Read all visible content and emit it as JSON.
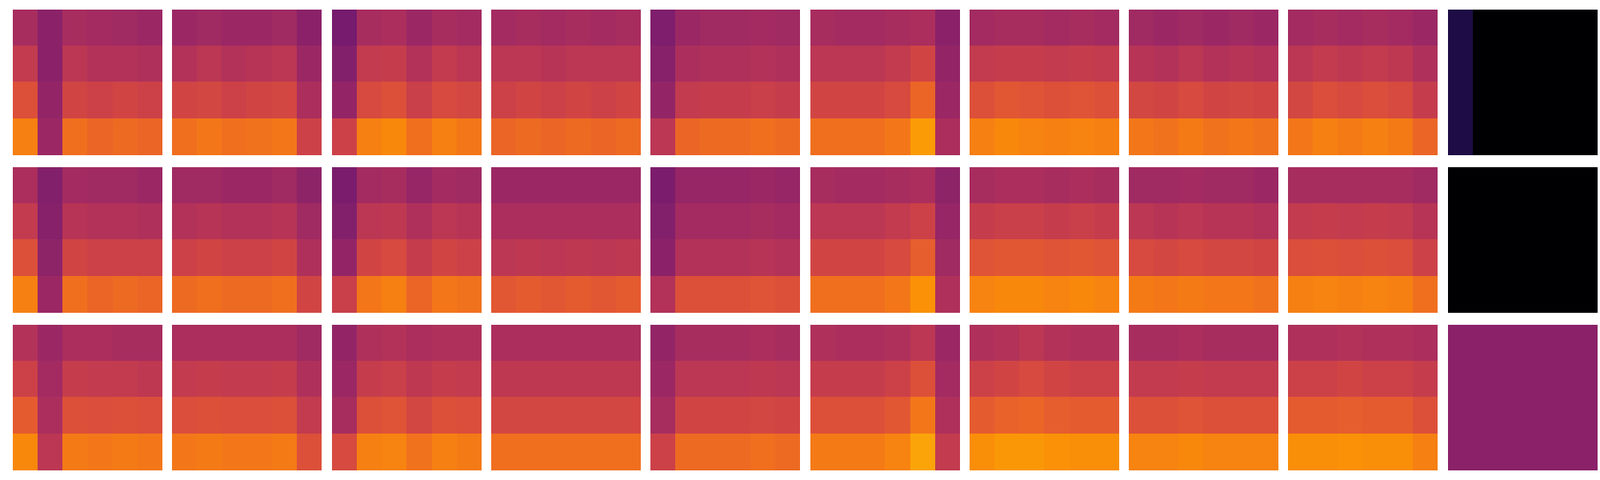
{
  "chart_data": {
    "type": "heatmap",
    "color": "inferno",
    "zlim": [
      0,
      1
    ],
    "tick_labels": false,
    "panels": [
      [
        [
          [
            0.45,
            0.38,
            0.45,
            0.44,
            0.43,
            0.42
          ],
          [
            0.52,
            0.38,
            0.5,
            0.48,
            0.48,
            0.47
          ],
          [
            0.6,
            0.4,
            0.56,
            0.55,
            0.56,
            0.55
          ],
          [
            0.72,
            0.42,
            0.68,
            0.66,
            0.67,
            0.66
          ]
        ],
        [
          [
            0.42,
            0.43,
            0.42,
            0.42,
            0.43,
            0.38
          ],
          [
            0.48,
            0.5,
            0.48,
            0.49,
            0.5,
            0.42
          ],
          [
            0.56,
            0.57,
            0.55,
            0.56,
            0.57,
            0.46
          ],
          [
            0.68,
            0.7,
            0.68,
            0.69,
            0.7,
            0.55
          ]
        ],
        [
          [
            0.33,
            0.45,
            0.46,
            0.42,
            0.45,
            0.44
          ],
          [
            0.36,
            0.52,
            0.53,
            0.48,
            0.52,
            0.5
          ],
          [
            0.4,
            0.58,
            0.6,
            0.54,
            0.58,
            0.57
          ],
          [
            0.55,
            0.72,
            0.74,
            0.68,
            0.72,
            0.7
          ]
        ],
        [
          [
            0.44,
            0.45,
            0.44,
            0.45,
            0.44,
            0.45
          ],
          [
            0.5,
            0.5,
            0.49,
            0.5,
            0.5,
            0.5
          ],
          [
            0.55,
            0.56,
            0.55,
            0.56,
            0.55,
            0.56
          ],
          [
            0.66,
            0.67,
            0.66,
            0.67,
            0.66,
            0.67
          ]
        ],
        [
          [
            0.35,
            0.42,
            0.43,
            0.43,
            0.44,
            0.43
          ],
          [
            0.37,
            0.46,
            0.47,
            0.47,
            0.48,
            0.47
          ],
          [
            0.4,
            0.52,
            0.53,
            0.53,
            0.54,
            0.53
          ],
          [
            0.5,
            0.66,
            0.67,
            0.67,
            0.68,
            0.67
          ]
        ],
        [
          [
            0.45,
            0.44,
            0.44,
            0.45,
            0.46,
            0.38
          ],
          [
            0.5,
            0.5,
            0.5,
            0.52,
            0.56,
            0.4
          ],
          [
            0.56,
            0.56,
            0.56,
            0.58,
            0.66,
            0.42
          ],
          [
            0.68,
            0.68,
            0.68,
            0.7,
            0.78,
            0.46
          ]
        ],
        [
          [
            0.44,
            0.45,
            0.45,
            0.44,
            0.45,
            0.44
          ],
          [
            0.52,
            0.53,
            0.53,
            0.52,
            0.53,
            0.52
          ],
          [
            0.6,
            0.62,
            0.61,
            0.6,
            0.61,
            0.6
          ],
          [
            0.72,
            0.74,
            0.73,
            0.72,
            0.73,
            0.72
          ]
        ],
        [
          [
            0.43,
            0.42,
            0.43,
            0.42,
            0.43,
            0.42
          ],
          [
            0.49,
            0.48,
            0.5,
            0.48,
            0.49,
            0.48
          ],
          [
            0.57,
            0.56,
            0.58,
            0.56,
            0.57,
            0.56
          ],
          [
            0.7,
            0.69,
            0.71,
            0.69,
            0.7,
            0.69
          ]
        ],
        [
          [
            0.44,
            0.45,
            0.44,
            0.45,
            0.44,
            0.42
          ],
          [
            0.5,
            0.52,
            0.51,
            0.52,
            0.51,
            0.47
          ],
          [
            0.57,
            0.59,
            0.58,
            0.59,
            0.58,
            0.53
          ],
          [
            0.7,
            0.72,
            0.71,
            0.72,
            0.71,
            0.66
          ]
        ],
        [
          [
            0.12,
            0,
            0,
            0,
            0,
            0
          ],
          [
            0.12,
            0,
            0,
            0,
            0,
            0
          ],
          [
            0.12,
            0,
            0,
            0,
            0,
            0
          ],
          [
            0.12,
            0,
            0,
            0,
            0,
            0
          ]
        ]
      ],
      [
        [
          [
            0.46,
            0.36,
            0.44,
            0.43,
            0.43,
            0.42
          ],
          [
            0.52,
            0.37,
            0.49,
            0.48,
            0.48,
            0.47
          ],
          [
            0.6,
            0.39,
            0.56,
            0.55,
            0.55,
            0.55
          ],
          [
            0.72,
            0.42,
            0.68,
            0.66,
            0.67,
            0.66
          ]
        ],
        [
          [
            0.43,
            0.43,
            0.42,
            0.42,
            0.43,
            0.39
          ],
          [
            0.48,
            0.49,
            0.48,
            0.48,
            0.49,
            0.43
          ],
          [
            0.55,
            0.56,
            0.55,
            0.55,
            0.56,
            0.47
          ],
          [
            0.67,
            0.68,
            0.67,
            0.67,
            0.68,
            0.56
          ]
        ],
        [
          [
            0.34,
            0.44,
            0.45,
            0.41,
            0.44,
            0.43
          ],
          [
            0.36,
            0.5,
            0.51,
            0.47,
            0.5,
            0.49
          ],
          [
            0.4,
            0.56,
            0.58,
            0.53,
            0.56,
            0.55
          ],
          [
            0.54,
            0.7,
            0.72,
            0.66,
            0.7,
            0.69
          ]
        ],
        [
          [
            0.42,
            0.42,
            0.42,
            0.42,
            0.42,
            0.42
          ],
          [
            0.46,
            0.46,
            0.46,
            0.46,
            0.46,
            0.46
          ],
          [
            0.5,
            0.51,
            0.5,
            0.51,
            0.5,
            0.51
          ],
          [
            0.62,
            0.63,
            0.62,
            0.63,
            0.62,
            0.63
          ]
        ],
        [
          [
            0.34,
            0.41,
            0.41,
            0.41,
            0.42,
            0.41
          ],
          [
            0.36,
            0.44,
            0.44,
            0.44,
            0.45,
            0.44
          ],
          [
            0.38,
            0.48,
            0.48,
            0.48,
            0.49,
            0.48
          ],
          [
            0.48,
            0.6,
            0.6,
            0.6,
            0.61,
            0.6
          ]
        ],
        [
          [
            0.45,
            0.44,
            0.44,
            0.45,
            0.46,
            0.39
          ],
          [
            0.5,
            0.5,
            0.5,
            0.52,
            0.55,
            0.41
          ],
          [
            0.56,
            0.56,
            0.56,
            0.58,
            0.64,
            0.43
          ],
          [
            0.68,
            0.68,
            0.68,
            0.7,
            0.76,
            0.47
          ]
        ],
        [
          [
            0.45,
            0.46,
            0.46,
            0.45,
            0.46,
            0.45
          ],
          [
            0.53,
            0.54,
            0.54,
            0.53,
            0.54,
            0.53
          ],
          [
            0.61,
            0.62,
            0.62,
            0.61,
            0.62,
            0.61
          ],
          [
            0.73,
            0.74,
            0.74,
            0.73,
            0.74,
            0.73
          ]
        ],
        [
          [
            0.43,
            0.43,
            0.44,
            0.43,
            0.43,
            0.42
          ],
          [
            0.5,
            0.49,
            0.5,
            0.49,
            0.49,
            0.48
          ],
          [
            0.58,
            0.57,
            0.58,
            0.57,
            0.57,
            0.56
          ],
          [
            0.71,
            0.7,
            0.71,
            0.7,
            0.7,
            0.69
          ]
        ],
        [
          [
            0.45,
            0.45,
            0.45,
            0.45,
            0.45,
            0.43
          ],
          [
            0.52,
            0.53,
            0.52,
            0.53,
            0.52,
            0.49
          ],
          [
            0.59,
            0.6,
            0.59,
            0.6,
            0.59,
            0.55
          ],
          [
            0.72,
            0.73,
            0.72,
            0.73,
            0.72,
            0.68
          ]
        ],
        [
          [
            0,
            0,
            0,
            0,
            0,
            0
          ],
          [
            0,
            0,
            0,
            0,
            0,
            0
          ],
          [
            0,
            0,
            0,
            0,
            0,
            0
          ],
          [
            0,
            0,
            0,
            0,
            0,
            0
          ]
        ]
      ],
      [
        [
          [
            0.48,
            0.42,
            0.46,
            0.46,
            0.45,
            0.45
          ],
          [
            0.55,
            0.44,
            0.53,
            0.52,
            0.52,
            0.51
          ],
          [
            0.63,
            0.46,
            0.6,
            0.59,
            0.6,
            0.59
          ],
          [
            0.74,
            0.5,
            0.71,
            0.7,
            0.71,
            0.7
          ]
        ],
        [
          [
            0.46,
            0.46,
            0.46,
            0.46,
            0.46,
            0.43
          ],
          [
            0.52,
            0.53,
            0.52,
            0.52,
            0.53,
            0.47
          ],
          [
            0.59,
            0.6,
            0.59,
            0.59,
            0.6,
            0.52
          ],
          [
            0.7,
            0.71,
            0.7,
            0.7,
            0.71,
            0.6
          ]
        ],
        [
          [
            0.4,
            0.47,
            0.48,
            0.46,
            0.47,
            0.47
          ],
          [
            0.42,
            0.53,
            0.54,
            0.51,
            0.53,
            0.52
          ],
          [
            0.45,
            0.6,
            0.61,
            0.57,
            0.6,
            0.59
          ],
          [
            0.58,
            0.72,
            0.73,
            0.69,
            0.72,
            0.71
          ]
        ],
        [
          [
            0.46,
            0.46,
            0.46,
            0.46,
            0.46,
            0.46
          ],
          [
            0.51,
            0.51,
            0.51,
            0.51,
            0.51,
            0.51
          ],
          [
            0.57,
            0.57,
            0.57,
            0.57,
            0.57,
            0.57
          ],
          [
            0.68,
            0.68,
            0.68,
            0.68,
            0.68,
            0.68
          ]
        ],
        [
          [
            0.4,
            0.45,
            0.45,
            0.45,
            0.46,
            0.45
          ],
          [
            0.42,
            0.5,
            0.5,
            0.5,
            0.51,
            0.5
          ],
          [
            0.45,
            0.56,
            0.56,
            0.56,
            0.57,
            0.56
          ],
          [
            0.55,
            0.67,
            0.67,
            0.67,
            0.68,
            0.67
          ]
        ],
        [
          [
            0.47,
            0.46,
            0.46,
            0.47,
            0.5,
            0.42
          ],
          [
            0.53,
            0.53,
            0.53,
            0.55,
            0.6,
            0.44
          ],
          [
            0.6,
            0.6,
            0.6,
            0.62,
            0.7,
            0.47
          ],
          [
            0.71,
            0.71,
            0.71,
            0.73,
            0.8,
            0.52
          ]
        ],
        [
          [
            0.47,
            0.48,
            0.5,
            0.48,
            0.47,
            0.47
          ],
          [
            0.55,
            0.56,
            0.58,
            0.56,
            0.55,
            0.55
          ],
          [
            0.63,
            0.65,
            0.66,
            0.64,
            0.63,
            0.63
          ],
          [
            0.75,
            0.77,
            0.77,
            0.76,
            0.75,
            0.75
          ]
        ],
        [
          [
            0.45,
            0.45,
            0.46,
            0.45,
            0.45,
            0.45
          ],
          [
            0.52,
            0.52,
            0.53,
            0.52,
            0.52,
            0.52
          ],
          [
            0.6,
            0.6,
            0.61,
            0.6,
            0.6,
            0.6
          ],
          [
            0.73,
            0.73,
            0.74,
            0.73,
            0.73,
            0.73
          ]
        ],
        [
          [
            0.47,
            0.47,
            0.48,
            0.47,
            0.47,
            0.46
          ],
          [
            0.55,
            0.55,
            0.56,
            0.55,
            0.55,
            0.53
          ],
          [
            0.63,
            0.63,
            0.64,
            0.63,
            0.63,
            0.6
          ],
          [
            0.75,
            0.75,
            0.76,
            0.75,
            0.75,
            0.72
          ]
        ],
        [
          [
            0.38,
            0.38,
            0.38,
            0.38,
            0.38,
            0.38
          ],
          [
            0.38,
            0.38,
            0.38,
            0.38,
            0.38,
            0.38
          ],
          [
            0.38,
            0.38,
            0.38,
            0.38,
            0.38,
            0.38
          ],
          [
            0.38,
            0.38,
            0.38,
            0.38,
            0.38,
            0.38
          ]
        ]
      ]
    ]
  }
}
